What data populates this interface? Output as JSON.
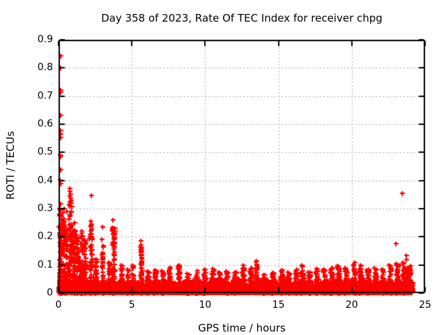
{
  "window": {
    "background": "#ffffff"
  },
  "chart_data": {
    "type": "scatter",
    "title": "Day 358 of 2023, Rate Of TEC Index for receiver chpg",
    "xlabel": "GPS time / hours",
    "ylabel": "ROTI / TECUs",
    "xlim": [
      0,
      25
    ],
    "ylim": [
      0,
      0.9
    ],
    "xticks": [
      {
        "v": 0,
        "label": "0"
      },
      {
        "v": 5,
        "label": "5"
      },
      {
        "v": 10,
        "label": "10"
      },
      {
        "v": 15,
        "label": "15"
      },
      {
        "v": 20,
        "label": "20"
      },
      {
        "v": 25,
        "label": "25"
      }
    ],
    "yticks": [
      {
        "v": 0,
        "label": "0"
      },
      {
        "v": 0.1,
        "label": "0.1"
      },
      {
        "v": 0.2,
        "label": "0.2"
      },
      {
        "v": 0.3,
        "label": "0.3"
      },
      {
        "v": 0.4,
        "label": "0.4"
      },
      {
        "v": 0.5,
        "label": "0.5"
      },
      {
        "v": 0.6,
        "label": "0.6"
      },
      {
        "v": 0.7,
        "label": "0.7"
      },
      {
        "v": 0.8,
        "label": "0.8"
      },
      {
        "v": 0.9,
        "label": "0.9"
      }
    ],
    "grid": {
      "show": true,
      "color": "#a8a8a8",
      "dash": [
        2,
        3
      ]
    },
    "legend": "none",
    "axis_color": "#000000",
    "tick_len": 7,
    "marker": {
      "shape": "plus",
      "color": "#ff0000",
      "size": 7,
      "thickness": 2
    },
    "outlier_points": [
      [
        0.15,
        0.843
      ],
      [
        0.15,
        0.801
      ],
      [
        0.12,
        0.722
      ],
      [
        0.14,
        0.713
      ],
      [
        0.15,
        0.632
      ],
      [
        0.12,
        0.578
      ],
      [
        0.13,
        0.565
      ],
      [
        0.14,
        0.552
      ],
      [
        0.1,
        0.49
      ],
      [
        0.16,
        0.487
      ],
      [
        0.14,
        0.44
      ],
      [
        0.1,
        0.402
      ],
      [
        0.12,
        0.39
      ],
      [
        0.75,
        0.372
      ],
      [
        0.78,
        0.362
      ],
      [
        0.8,
        0.352
      ],
      [
        0.76,
        0.345
      ],
      [
        0.82,
        0.338
      ],
      [
        0.85,
        0.33
      ],
      [
        2.23,
        0.347
      ],
      [
        0.13,
        0.318
      ],
      [
        0.4,
        0.3
      ],
      [
        0.15,
        0.298
      ],
      [
        0.55,
        0.29
      ],
      [
        0.3,
        0.285
      ],
      [
        0.7,
        0.315
      ],
      [
        1.1,
        0.25
      ],
      [
        1.55,
        0.22
      ],
      [
        2.2,
        0.255
      ],
      [
        2.22,
        0.245
      ],
      [
        2.18,
        0.235
      ],
      [
        3.0,
        0.236
      ],
      [
        2.25,
        0.225
      ],
      [
        3.7,
        0.26
      ],
      [
        3.72,
        0.23
      ],
      [
        3.75,
        0.22
      ],
      [
        3.78,
        0.205
      ],
      [
        3.74,
        0.19
      ],
      [
        3.87,
        0.22
      ],
      [
        3.8,
        0.175
      ],
      [
        5.6,
        0.185
      ],
      [
        5.62,
        0.172
      ],
      [
        5.65,
        0.16
      ],
      [
        5.63,
        0.148
      ],
      [
        5.66,
        0.136
      ],
      [
        5.64,
        0.122
      ],
      [
        5.67,
        0.11
      ],
      [
        23.43,
        0.355
      ],
      [
        23.02,
        0.176
      ],
      [
        23.7,
        0.135
      ],
      [
        23.72,
        0.12
      ],
      [
        20.2,
        0.108
      ],
      [
        13.5,
        0.115
      ],
      [
        16.6,
        0.1
      ],
      [
        12.6,
        0.1
      ],
      [
        23.3,
        0.1
      ],
      [
        8.2,
        0.1
      ]
    ],
    "dense_band": {
      "t_start": 0.0,
      "t_end": 24.15,
      "count": 9000,
      "v_offset": 0.002,
      "v_sigma": 0.015,
      "v_clip": 0.068,
      "seed": 358,
      "spike_v_power": 1.35,
      "spikes": [
        [
          0.12,
          0.1,
          0.3,
          90
        ],
        [
          0.35,
          0.08,
          0.27,
          60
        ],
        [
          0.55,
          0.07,
          0.23,
          50
        ],
        [
          0.8,
          0.1,
          0.33,
          70
        ],
        [
          1.05,
          0.08,
          0.23,
          55
        ],
        [
          1.3,
          0.07,
          0.21,
          50
        ],
        [
          1.55,
          0.08,
          0.22,
          55
        ],
        [
          1.8,
          0.08,
          0.19,
          50
        ],
        [
          2.2,
          0.1,
          0.25,
          60
        ],
        [
          2.55,
          0.06,
          0.13,
          35
        ],
        [
          3.0,
          0.05,
          0.2,
          35
        ],
        [
          3.45,
          0.05,
          0.12,
          30
        ],
        [
          3.75,
          0.1,
          0.24,
          60
        ],
        [
          4.3,
          0.06,
          0.1,
          30
        ],
        [
          4.75,
          0.05,
          0.09,
          25
        ],
        [
          5.05,
          0.05,
          0.1,
          25
        ],
        [
          5.63,
          0.06,
          0.17,
          40
        ],
        [
          6.1,
          0.08,
          0.08,
          30
        ],
        [
          6.6,
          0.08,
          0.09,
          30
        ],
        [
          7.1,
          0.08,
          0.08,
          30
        ],
        [
          7.55,
          0.08,
          0.095,
          35
        ],
        [
          8.2,
          0.07,
          0.1,
          35
        ],
        [
          8.8,
          0.08,
          0.075,
          30
        ],
        [
          9.4,
          0.08,
          0.08,
          30
        ],
        [
          9.95,
          0.08,
          0.085,
          30
        ],
        [
          10.5,
          0.08,
          0.09,
          35
        ],
        [
          11.0,
          0.08,
          0.075,
          30
        ],
        [
          11.5,
          0.08,
          0.08,
          30
        ],
        [
          12.05,
          0.08,
          0.075,
          30
        ],
        [
          12.6,
          0.09,
          0.1,
          35
        ],
        [
          13.1,
          0.08,
          0.09,
          35
        ],
        [
          13.5,
          0.05,
          0.115,
          30
        ],
        [
          14.0,
          0.08,
          0.08,
          30
        ],
        [
          14.6,
          0.08,
          0.075,
          30
        ],
        [
          15.2,
          0.08,
          0.09,
          35
        ],
        [
          15.7,
          0.08,
          0.08,
          30
        ],
        [
          16.2,
          0.08,
          0.085,
          30
        ],
        [
          16.6,
          0.07,
          0.1,
          30
        ],
        [
          17.1,
          0.08,
          0.08,
          30
        ],
        [
          17.6,
          0.08,
          0.09,
          30
        ],
        [
          18.1,
          0.08,
          0.085,
          30
        ],
        [
          18.6,
          0.08,
          0.09,
          30
        ],
        [
          19.1,
          0.1,
          0.1,
          40
        ],
        [
          19.6,
          0.08,
          0.09,
          35
        ],
        [
          20.15,
          0.08,
          0.105,
          40
        ],
        [
          20.6,
          0.08,
          0.1,
          40
        ],
        [
          21.1,
          0.08,
          0.085,
          35
        ],
        [
          21.6,
          0.08,
          0.09,
          35
        ],
        [
          22.1,
          0.08,
          0.09,
          35
        ],
        [
          22.6,
          0.08,
          0.1,
          35
        ],
        [
          23.1,
          0.08,
          0.105,
          40
        ],
        [
          23.55,
          0.1,
          0.11,
          45
        ],
        [
          23.9,
          0.12,
          0.1,
          55
        ]
      ]
    }
  }
}
